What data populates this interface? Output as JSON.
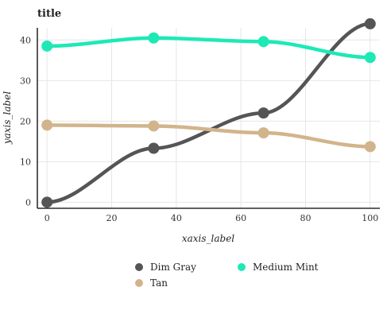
{
  "chart_data": {
    "type": "line",
    "title": "title",
    "xlabel": "xaxis_label",
    "ylabel": "yaxis_label",
    "xlim": [
      -3,
      103
    ],
    "ylim": [
      -1.5,
      43
    ],
    "x_ticks": [
      0,
      20,
      40,
      60,
      80,
      100
    ],
    "y_ticks": [
      0,
      10,
      20,
      30,
      40
    ],
    "grid": true,
    "legend_position": "bottom",
    "series": [
      {
        "name": "Dim Gray",
        "color": "#555555",
        "x": [
          0,
          33,
          67,
          100
        ],
        "y": [
          0,
          13.3,
          22.0,
          44.0
        ]
      },
      {
        "name": "Medium Mint",
        "color": "#1de9b6",
        "x": [
          0,
          33,
          67,
          100
        ],
        "y": [
          38.5,
          40.5,
          39.6,
          35.7
        ]
      },
      {
        "name": "Tan",
        "color": "#d2b48c",
        "x": [
          0,
          33,
          67,
          100
        ],
        "y": [
          19.0,
          18.8,
          17.1,
          13.7
        ]
      }
    ]
  }
}
